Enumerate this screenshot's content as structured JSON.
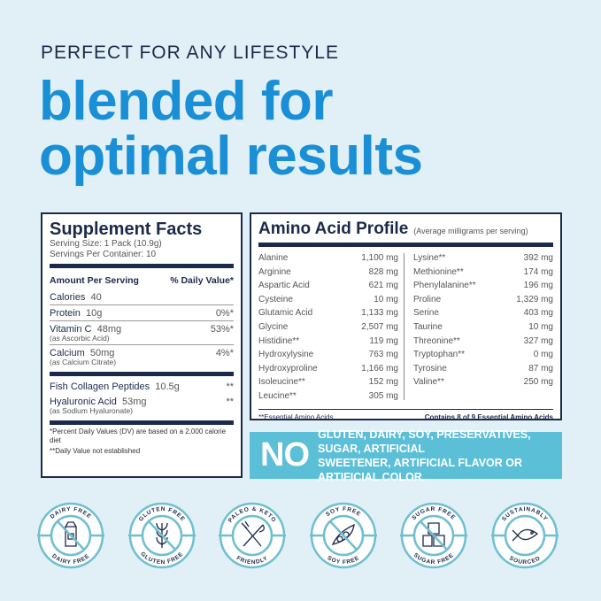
{
  "eyebrow": "PERFECT FOR ANY LIFESTYLE",
  "headline": [
    "blended for",
    "optimal results"
  ],
  "colors": {
    "accent": "#1a8fd6",
    "navy": "#1c2a4a",
    "banner": "#5bbfd8",
    "background": "#e0f0f6"
  },
  "supplement_facts": {
    "title": "Supplement Facts",
    "serving_size": "Serving Size: 1 Pack (10.9g)",
    "servings": "Servings Per Container: 10",
    "col_amount": "Amount Per Serving",
    "col_dv": "% Daily Value*",
    "rows": [
      {
        "name": "Calories",
        "amount": "40",
        "dv": "",
        "sub": ""
      },
      {
        "name": "Protein",
        "amount": "10g",
        "dv": "0%*",
        "sub": ""
      },
      {
        "name": "Vitamin C",
        "amount": "48mg",
        "dv": "53%*",
        "sub": "(as Ascorbic Acid)"
      },
      {
        "name": "Calcium",
        "amount": "50mg",
        "dv": "4%*",
        "sub": "(as Calcium Citrate)"
      }
    ],
    "other": [
      {
        "name": "Fish Collagen Peptides",
        "amount": "10.5g",
        "dv": "**",
        "sub": ""
      },
      {
        "name": "Hyaluronic Acid",
        "amount": "53mg",
        "dv": "**",
        "sub": "(as Sodium Hyaluronate)"
      }
    ],
    "footnote1": "*Percent Daily Values (DV) are based on a 2,000 calorie diet",
    "footnote2": "**Daily Value not established"
  },
  "amino": {
    "title": "Amino Acid Profile",
    "note": "(Average milligrams per serving)",
    "left": [
      [
        "Alanine",
        "1,100 mg"
      ],
      [
        "Arginine",
        "828 mg"
      ],
      [
        "Aspartic Acid",
        "621 mg"
      ],
      [
        "Cysteine",
        "10 mg"
      ],
      [
        "Glutamic Acid",
        "1,133 mg"
      ],
      [
        "Glycine",
        "2,507 mg"
      ],
      [
        "Histidine**",
        "119 mg"
      ],
      [
        "Hydroxylysine",
        "763 mg"
      ],
      [
        "Hydroxyproline",
        "1,166 mg"
      ],
      [
        "Isoleucine**",
        "152 mg"
      ],
      [
        "Leucine**",
        "305 mg"
      ]
    ],
    "right": [
      [
        "Lysine**",
        "392 mg"
      ],
      [
        "Methionine**",
        "174 mg"
      ],
      [
        "Phenylalanine**",
        "196 mg"
      ],
      [
        "Proline",
        "1,329 mg"
      ],
      [
        "Serine",
        "403 mg"
      ],
      [
        "Taurine",
        "10 mg"
      ],
      [
        "Threonine**",
        "327 mg"
      ],
      [
        "Tryptophan**",
        "0 mg"
      ],
      [
        "Tyrosine",
        "87 mg"
      ],
      [
        "Valine**",
        "250 mg"
      ]
    ],
    "foot_left": "**Essential Amino Acids",
    "foot_right": "Contains 8 of 9 Essential Amino Acids"
  },
  "banner": {
    "big": "NO",
    "line1": "GLUTEN, DAIRY, SOY, PRESERVATIVES, SUGAR, ARTIFICIAL",
    "line2": "SWEETENER, ARTIFICIAL FLAVOR OR ARTIFICIAL COLOR."
  },
  "badges": [
    {
      "top": "DAIRY FREE",
      "bottom": "DAIRY FREE",
      "icon": "milk-carton-icon",
      "crossed": true
    },
    {
      "top": "GLUTEN FREE",
      "bottom": "GLUTEN FREE",
      "icon": "wheat-icon",
      "crossed": true
    },
    {
      "top": "PALEO & KETO",
      "bottom": "FRIENDLY",
      "icon": "fork-knife-icon",
      "crossed": false
    },
    {
      "top": "SOY FREE",
      "bottom": "SOY FREE",
      "icon": "soybean-icon",
      "crossed": true
    },
    {
      "top": "SUGAR FREE",
      "bottom": "SUGAR FREE",
      "icon": "sugar-cubes-icon",
      "crossed": true
    },
    {
      "top": "SUSTAINABLY",
      "bottom": "SOURCED",
      "icon": "fish-icon",
      "crossed": false
    }
  ]
}
